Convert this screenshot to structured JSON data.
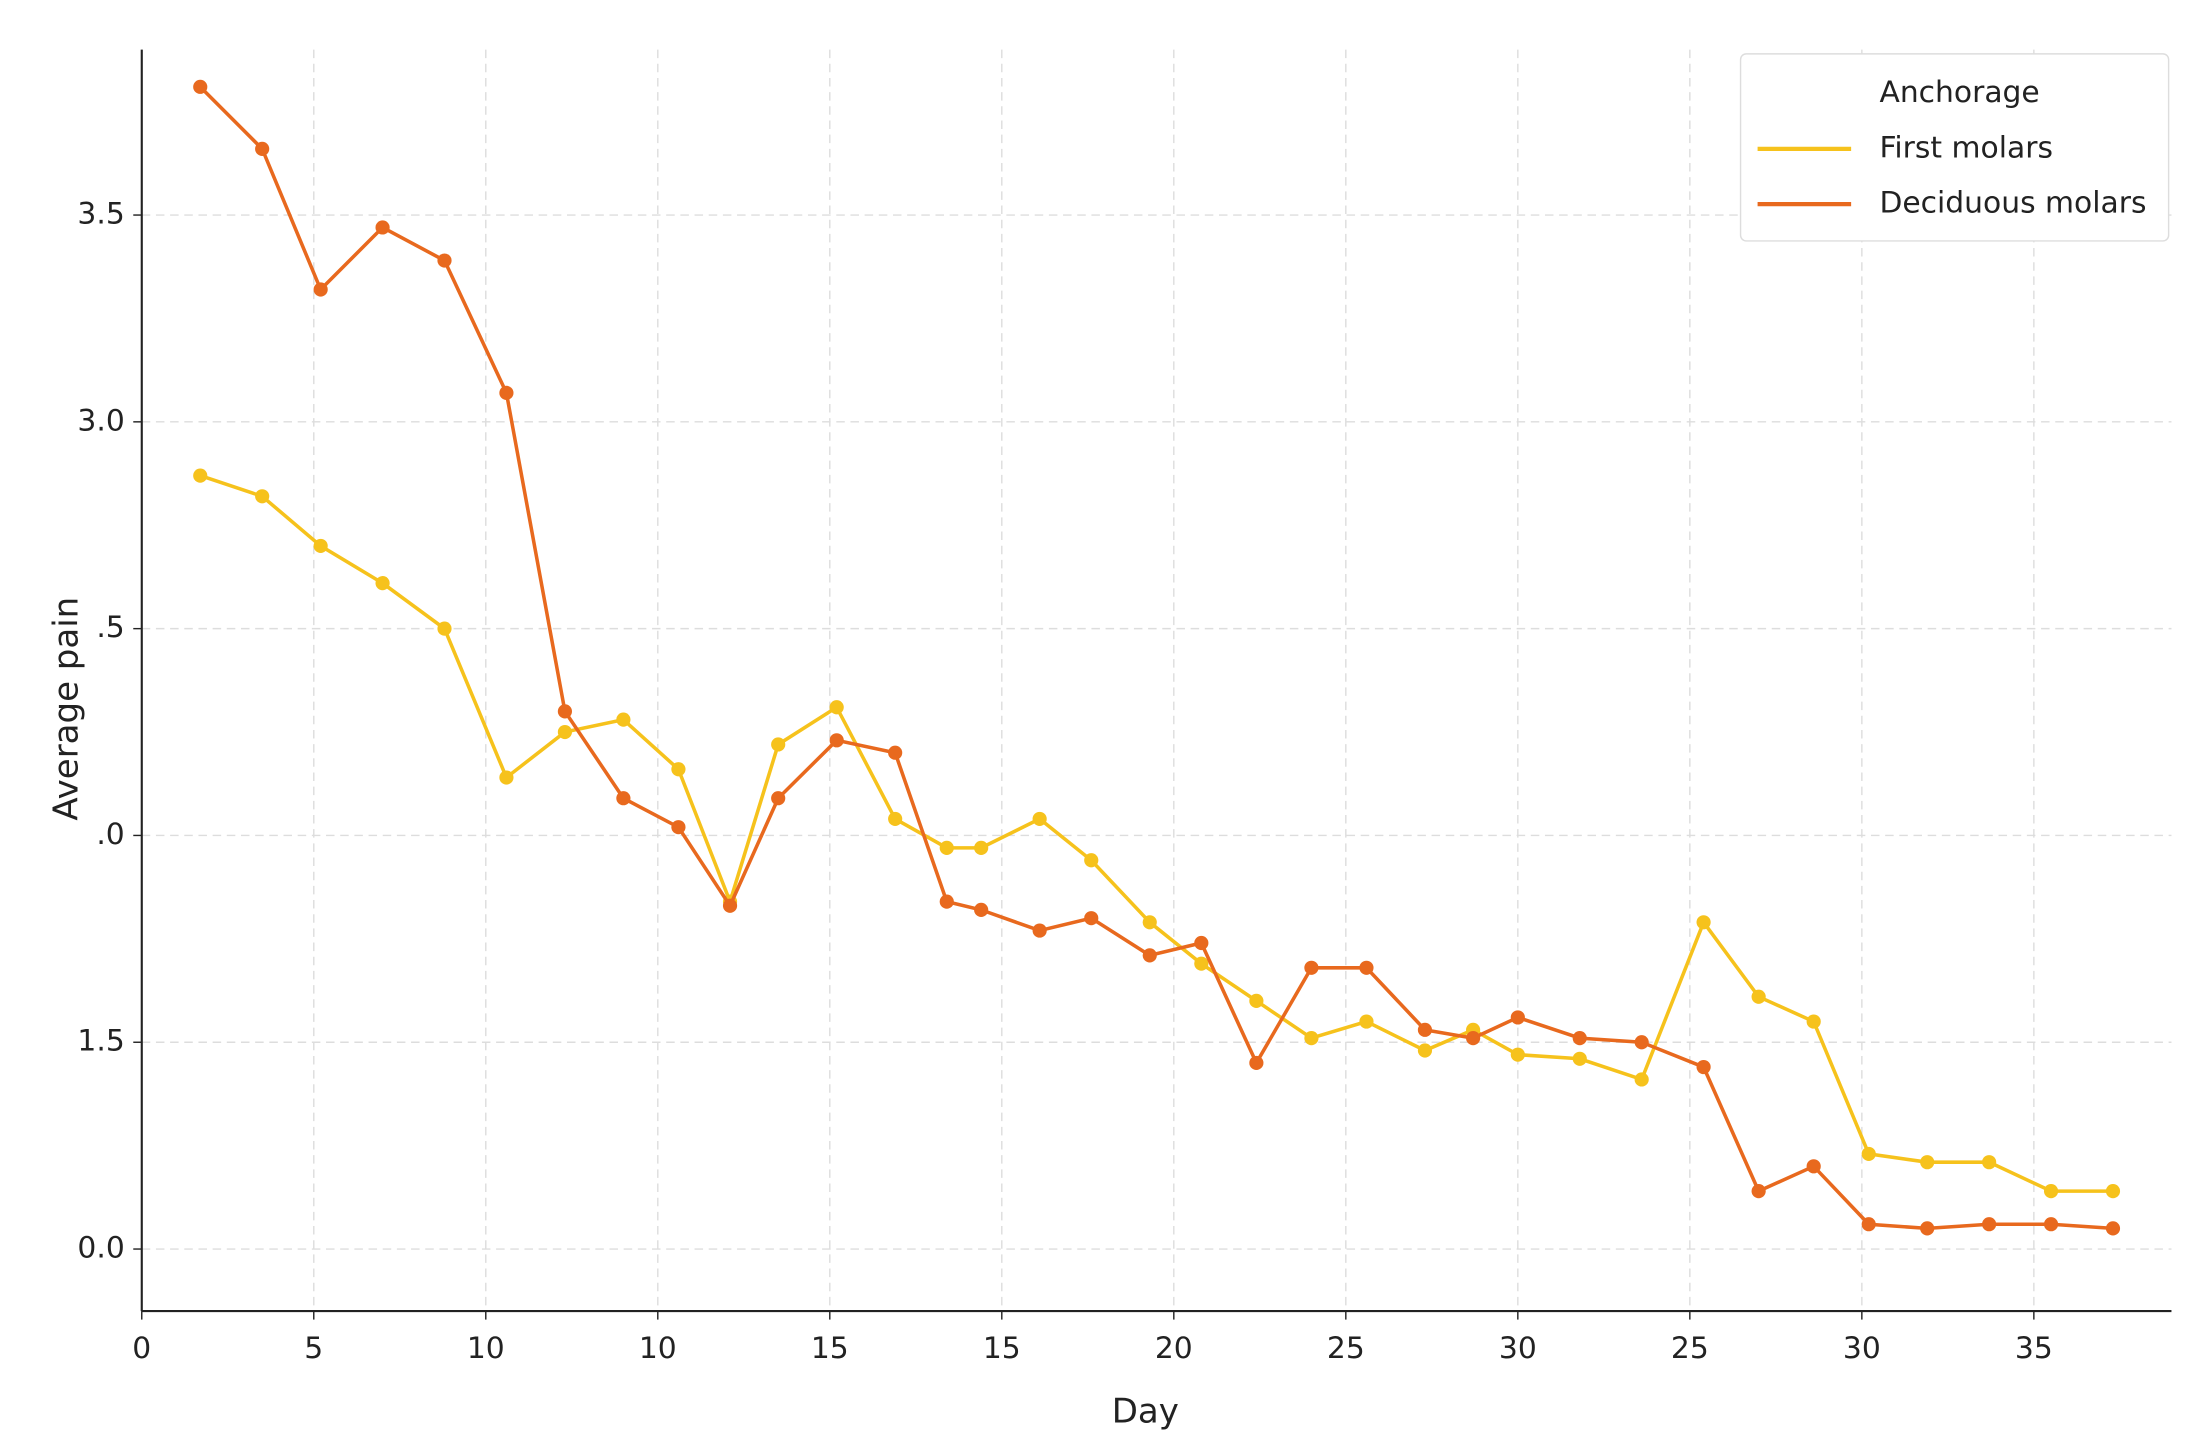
{
  "chart_data": {
    "type": "line",
    "x_label": "Day",
    "y_label": "Average pain",
    "x": [
      1.7,
      3.5,
      5.2,
      7.0,
      8.8,
      10.6,
      12.3,
      14.0,
      15.6,
      17.1,
      18.5,
      20.2,
      21.9,
      23.4,
      24.4,
      26.1,
      27.6,
      29.3,
      30.8,
      32.4,
      34.0,
      35.6,
      37.3,
      38.7,
      40.0,
      41.8,
      43.6,
      45.4,
      47.0,
      48.6,
      50.2,
      51.9,
      53.7,
      55.5,
      57.3
    ],
    "series": [
      {
        "name": "First molars",
        "color": "#f6c21c",
        "values": [
          2.87,
          2.82,
          2.7,
          2.61,
          2.5,
          2.14,
          2.25,
          2.28,
          2.16,
          1.84,
          2.22,
          2.31,
          2.04,
          1.97,
          1.97,
          2.04,
          1.94,
          1.79,
          1.69,
          1.6,
          1.51,
          1.55,
          1.48,
          1.53,
          1.47,
          1.46,
          1.41,
          1.79,
          1.61,
          1.55,
          1.23,
          1.21,
          1.21,
          1.14,
          1.14
        ]
      },
      {
        "name": "Deciduous molars",
        "color": "#e8691e",
        "values": [
          3.81,
          3.66,
          3.32,
          3.47,
          3.39,
          3.07,
          2.3,
          2.09,
          2.02,
          1.83,
          2.09,
          2.23,
          2.2,
          1.84,
          1.82,
          1.77,
          1.8,
          1.71,
          1.74,
          1.45,
          1.68,
          1.68,
          1.53,
          1.51,
          1.56,
          1.51,
          1.5,
          1.44,
          1.14,
          1.2,
          1.06,
          1.05,
          1.06,
          1.06,
          1.05
        ]
      }
    ],
    "xlim": [
      0,
      59
    ],
    "ylim": [
      0.85,
      3.9
    ],
    "xticks": [
      0,
      5,
      10,
      {
        "value": 15,
        "label": "10"
      },
      {
        "value": 20,
        "label": "15"
      },
      {
        "value": 25,
        "label": "15"
      },
      {
        "value": 30,
        "label": "20"
      },
      {
        "value": 35,
        "label": "25"
      },
      {
        "value": 40,
        "label": "30"
      },
      {
        "value": 45,
        "label": "25"
      },
      {
        "value": 50,
        "label": "30"
      },
      {
        "value": 55,
        "label": "35"
      }
    ],
    "yticks": [
      {
        "value": 1.0,
        "label": "0.0"
      },
      1.5,
      {
        "value": 2.0,
        "label": ".0"
      },
      {
        "value": 2.5,
        "label": ".5"
      },
      {
        "value": 3.0,
        "label": "3.0"
      },
      3.5
    ],
    "grid": true,
    "legend_title": "Anchorage",
    "legend": "upper right"
  }
}
